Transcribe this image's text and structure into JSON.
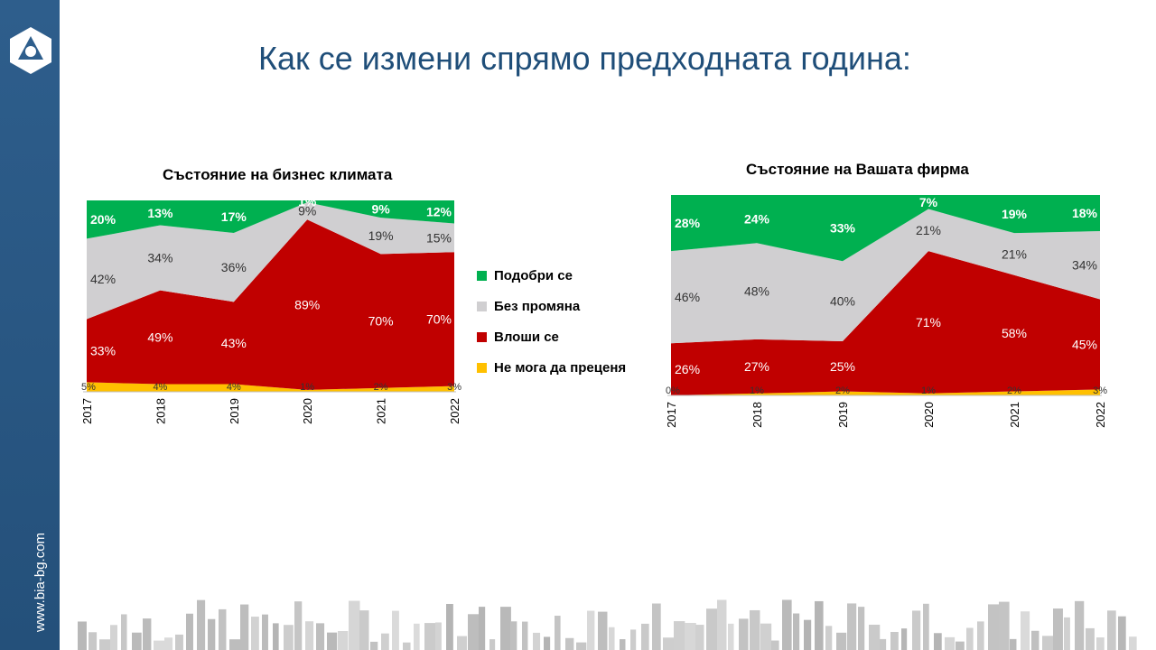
{
  "slide": {
    "title": "Как се измени спрямо предходната година:",
    "website": "www.bia-bg.com"
  },
  "colors": {
    "improved": "#00b050",
    "unchanged": "#d0cfd1",
    "worse": "#c00000",
    "cannot_tell": "#ffc000",
    "sidebar": "#2b5a87",
    "title": "#1f4e79"
  },
  "legend": {
    "items": [
      {
        "key": "improved",
        "label": "Подобри се"
      },
      {
        "key": "unchanged",
        "label": "Без промяна"
      },
      {
        "key": "worse",
        "label": "Влоши се"
      },
      {
        "key": "cannot_tell",
        "label": "Не мога да преценя"
      }
    ]
  },
  "chart_data": [
    {
      "type": "area",
      "stacked": true,
      "percent": true,
      "title": "Състояние на бизнес климата",
      "categories": [
        "2017",
        "2018",
        "2019",
        "2020",
        "2021",
        "2022"
      ],
      "series": [
        {
          "name": "Не мога да преценя",
          "key": "cannot_tell",
          "values": [
            5,
            4,
            4,
            1,
            2,
            3
          ]
        },
        {
          "name": "Влоши се",
          "key": "worse",
          "values": [
            33,
            49,
            43,
            89,
            70,
            70
          ]
        },
        {
          "name": "Без промяна",
          "key": "unchanged",
          "values": [
            42,
            34,
            36,
            9,
            19,
            15
          ]
        },
        {
          "name": "Подобри се",
          "key": "improved",
          "values": [
            20,
            13,
            17,
            1,
            9,
            12
          ]
        }
      ],
      "ylim": [
        0,
        100
      ],
      "legend": "right"
    },
    {
      "type": "area",
      "stacked": true,
      "percent": true,
      "title": "Състояние на Вашата фирма",
      "categories": [
        "2017",
        "2018",
        "2019",
        "2020",
        "2021",
        "2022"
      ],
      "series": [
        {
          "name": "Не мога да преценя",
          "key": "cannot_tell",
          "values": [
            0,
            1,
            2,
            1,
            2,
            3
          ]
        },
        {
          "name": "Влоши се",
          "key": "worse",
          "values": [
            26,
            27,
            25,
            71,
            58,
            45
          ]
        },
        {
          "name": "Без промяна",
          "key": "unchanged",
          "values": [
            46,
            48,
            40,
            21,
            21,
            34
          ]
        },
        {
          "name": "Подобри се",
          "key": "improved",
          "values": [
            28,
            24,
            33,
            7,
            19,
            18
          ]
        }
      ],
      "ylim": [
        0,
        100
      ]
    }
  ]
}
